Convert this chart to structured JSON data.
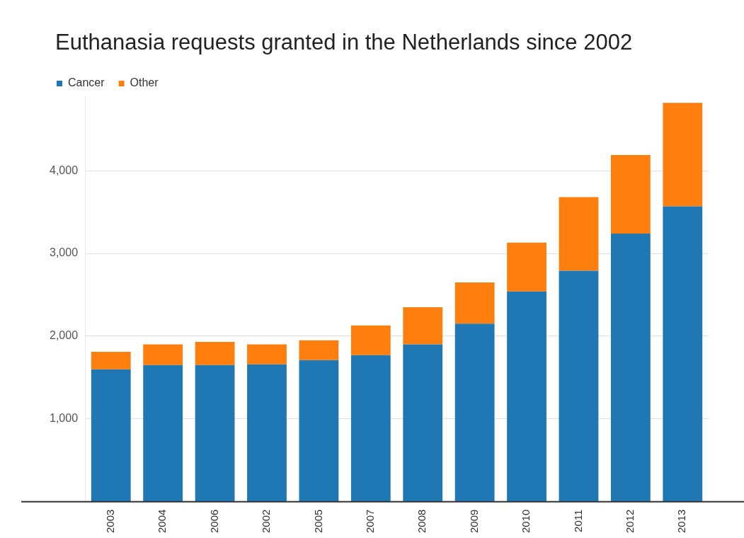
{
  "chart_data": {
    "type": "bar",
    "title": "Euthanasia requests granted in the Netherlands since 2002",
    "categories": [
      "2003",
      "2004",
      "2006",
      "2002",
      "2005",
      "2007",
      "2008",
      "2009",
      "2010",
      "2011",
      "2012",
      "2013"
    ],
    "stacked": true,
    "series": [
      {
        "name": "Cancer",
        "color": "#1f77b4",
        "values": [
          1600,
          1650,
          1650,
          1660,
          1710,
          1770,
          1900,
          2150,
          2540,
          2790,
          3240,
          3570
        ]
      },
      {
        "name": "Other",
        "color": "#ff7f0e",
        "values": [
          210,
          250,
          280,
          240,
          240,
          360,
          450,
          500,
          590,
          890,
          950,
          1250
        ]
      }
    ],
    "ylim": [
      0,
      4900
    ],
    "yticks": [
      {
        "value": 1000,
        "label": "1,000"
      },
      {
        "value": 2000,
        "label": "2,000"
      },
      {
        "value": 3000,
        "label": "3,000"
      },
      {
        "value": 4000,
        "label": "4,000"
      }
    ],
    "grid": "y",
    "legend": "top left"
  }
}
